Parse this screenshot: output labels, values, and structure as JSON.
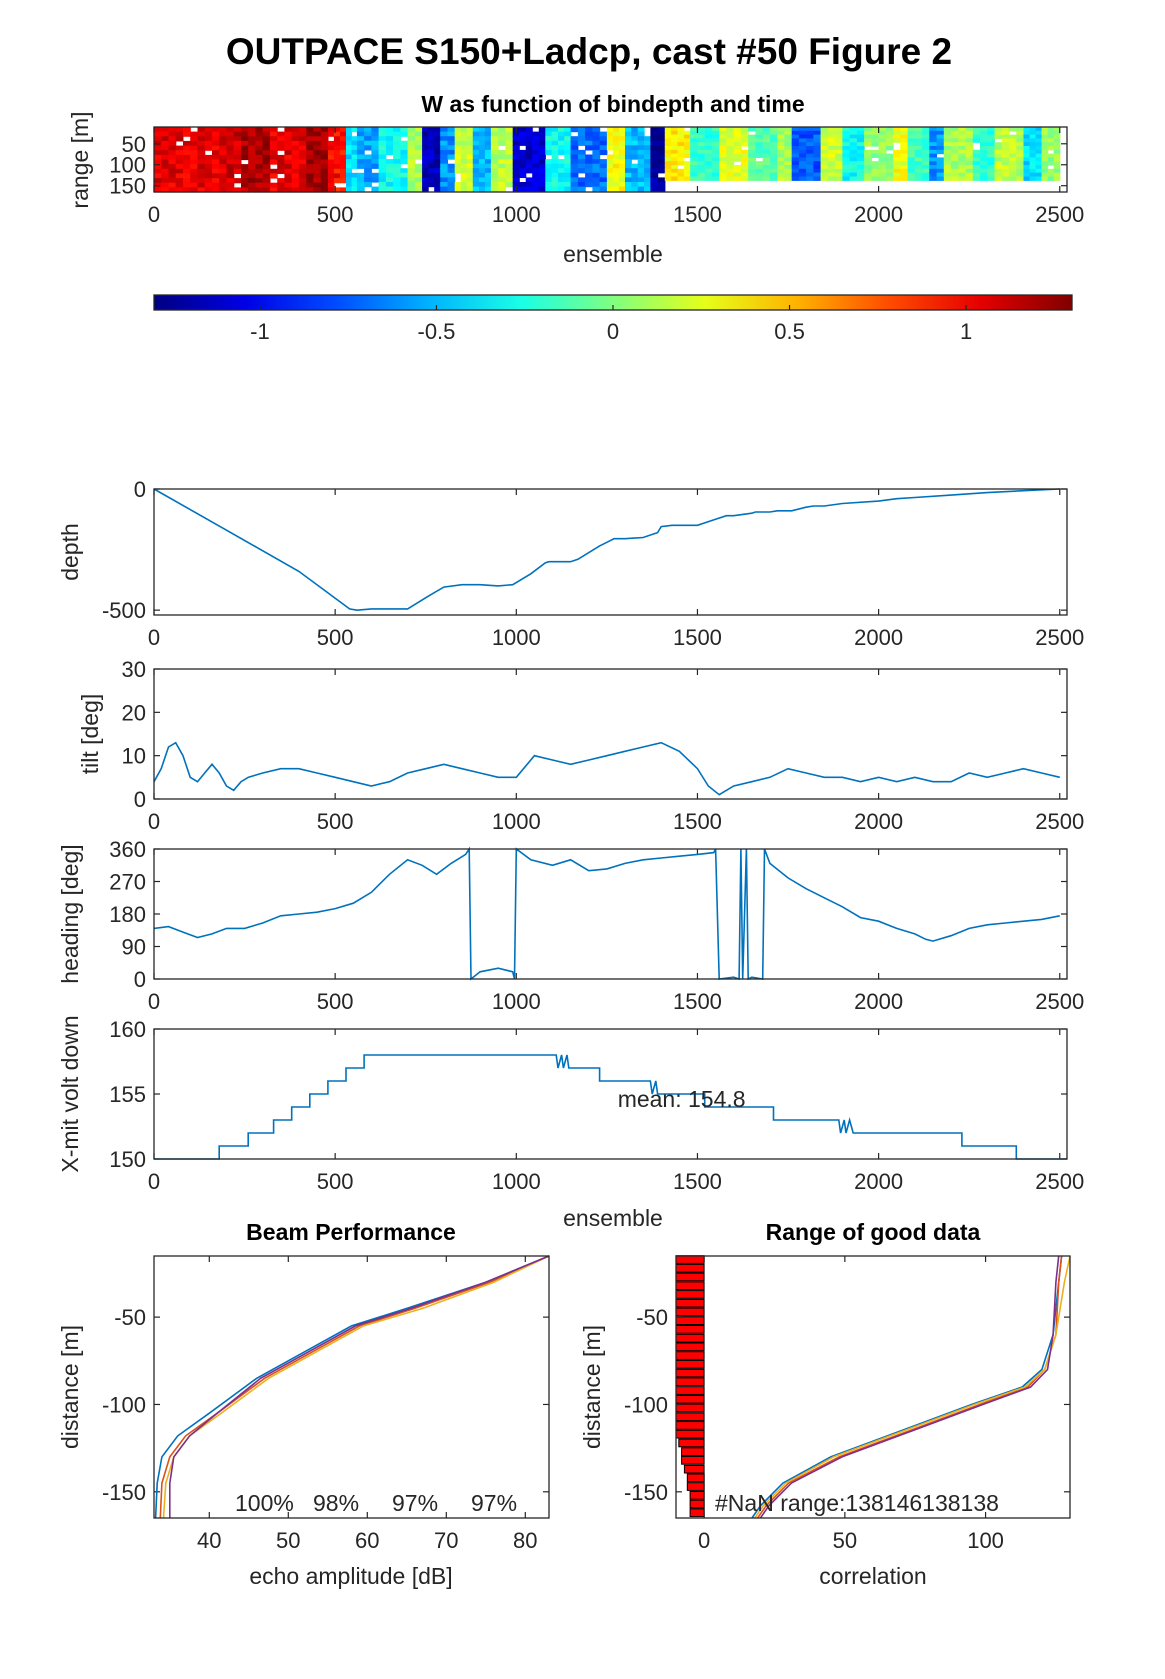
{
  "figure_title": "OUTPACE S150+Ladcp, cast #50 Figure 2",
  "colors": {
    "line": "#0072BD",
    "bar_fill": "#ff0000",
    "axes": "#262626"
  },
  "chart_data": [
    {
      "id": "w-image",
      "type": "heatmap",
      "title": "W as function of bindepth and time",
      "xlabel": "ensemble",
      "ylabel": "range [m]",
      "xlim": [
        0,
        2520
      ],
      "ylim": [
        165,
        10
      ],
      "xticks": [
        0,
        500,
        1000,
        1500,
        2000,
        2500
      ],
      "yticks": [
        50,
        100,
        150
      ],
      "colormap": "jet",
      "clim": [
        -1.3,
        1.3
      ],
      "column_segments": [
        {
          "x0": 0,
          "x1": 200,
          "w": 1.05
        },
        {
          "x0": 200,
          "x1": 240,
          "w": 1.1
        },
        {
          "x0": 240,
          "x1": 320,
          "w": 1.2
        },
        {
          "x0": 320,
          "x1": 420,
          "w": 1.05
        },
        {
          "x0": 420,
          "x1": 480,
          "w": 1.22
        },
        {
          "x0": 480,
          "x1": 530,
          "w": 0.95
        },
        {
          "x0": 530,
          "x1": 560,
          "w": -0.4
        },
        {
          "x0": 560,
          "x1": 620,
          "w": -0.55
        },
        {
          "x0": 620,
          "x1": 700,
          "w": -0.3
        },
        {
          "x0": 700,
          "x1": 740,
          "w": 0.1
        },
        {
          "x0": 740,
          "x1": 790,
          "w": -1.15
        },
        {
          "x0": 790,
          "x1": 830,
          "w": -0.6
        },
        {
          "x0": 830,
          "x1": 880,
          "w": 0.2
        },
        {
          "x0": 880,
          "x1": 930,
          "w": -0.5
        },
        {
          "x0": 930,
          "x1": 990,
          "w": 0.15
        },
        {
          "x0": 990,
          "x1": 1080,
          "w": -1.1
        },
        {
          "x0": 1080,
          "x1": 1150,
          "w": -0.3
        },
        {
          "x0": 1150,
          "x1": 1250,
          "w": -0.7
        },
        {
          "x0": 1250,
          "x1": 1300,
          "w": 0.3
        },
        {
          "x0": 1300,
          "x1": 1370,
          "w": -0.5
        },
        {
          "x0": 1370,
          "x1": 1410,
          "w": -1.25
        },
        {
          "x0": 1410,
          "x1": 1480,
          "w": 0.35
        },
        {
          "x0": 1480,
          "x1": 1560,
          "w": -0.2
        },
        {
          "x0": 1560,
          "x1": 1640,
          "w": 0.25
        },
        {
          "x0": 1640,
          "x1": 1720,
          "w": -0.1
        },
        {
          "x0": 1720,
          "x1": 1760,
          "w": 0.1
        },
        {
          "x0": 1760,
          "x1": 1840,
          "w": -0.75
        },
        {
          "x0": 1840,
          "x1": 1900,
          "w": 0.2
        },
        {
          "x0": 1900,
          "x1": 1960,
          "w": -0.3
        },
        {
          "x0": 1960,
          "x1": 2040,
          "w": 0.05
        },
        {
          "x0": 2040,
          "x1": 2080,
          "w": 0.3
        },
        {
          "x0": 2080,
          "x1": 2140,
          "w": -0.15
        },
        {
          "x0": 2140,
          "x1": 2180,
          "w": -0.6
        },
        {
          "x0": 2180,
          "x1": 2260,
          "w": 0.1
        },
        {
          "x0": 2260,
          "x1": 2320,
          "w": -0.2
        },
        {
          "x0": 2320,
          "x1": 2400,
          "w": 0.15
        },
        {
          "x0": 2400,
          "x1": 2450,
          "w": -0.4
        },
        {
          "x0": 2450,
          "x1": 2500,
          "w": 0.05
        }
      ]
    },
    {
      "id": "colorbar",
      "type": "colorbar",
      "colormap": "jet",
      "clim": [
        -1.3,
        1.3
      ],
      "ticks": [
        -1,
        -0.5,
        0,
        0.5,
        1
      ],
      "tick_labels": [
        "-1",
        "-0.5",
        "0",
        "0.5",
        "1"
      ]
    },
    {
      "id": "depth",
      "type": "line",
      "ylabel": "depth",
      "xlim": [
        0,
        2520
      ],
      "ylim": [
        -520,
        0
      ],
      "xticks": [
        0,
        500,
        1000,
        1500,
        2000,
        2500
      ],
      "yticks": [
        -500,
        0
      ],
      "x": [
        0,
        200,
        400,
        540,
        560,
        600,
        700,
        760,
        800,
        850,
        900,
        950,
        990,
        1040,
        1080,
        1090,
        1150,
        1170,
        1230,
        1250,
        1270,
        1300,
        1350,
        1390,
        1400,
        1430,
        1450,
        1500,
        1520,
        1550,
        1580,
        1600,
        1650,
        1660,
        1700,
        1720,
        1760,
        1800,
        1820,
        1850,
        1900,
        2000,
        2050,
        2100,
        2200,
        2300,
        2400,
        2500
      ],
      "y": [
        0,
        -170,
        -340,
        -495,
        -500,
        -495,
        -495,
        -440,
        -405,
        -395,
        -395,
        -400,
        -395,
        -350,
        -305,
        -300,
        -300,
        -290,
        -235,
        -220,
        -205,
        -205,
        -200,
        -180,
        -155,
        -150,
        -150,
        -150,
        -140,
        -125,
        -110,
        -110,
        -100,
        -95,
        -95,
        -90,
        -90,
        -75,
        -70,
        -70,
        -60,
        -50,
        -40,
        -35,
        -25,
        -15,
        -7,
        0
      ]
    },
    {
      "id": "tilt",
      "type": "line",
      "ylabel": "tilt [deg]",
      "xlim": [
        0,
        2520
      ],
      "ylim": [
        0,
        30
      ],
      "xticks": [
        0,
        500,
        1000,
        1500,
        2000,
        2500
      ],
      "yticks": [
        0,
        10,
        20,
        30
      ],
      "x": [
        0,
        20,
        40,
        60,
        80,
        100,
        120,
        140,
        160,
        180,
        200,
        220,
        240,
        260,
        300,
        350,
        400,
        450,
        500,
        550,
        600,
        650,
        700,
        750,
        800,
        850,
        900,
        950,
        1000,
        1050,
        1100,
        1150,
        1200,
        1250,
        1300,
        1350,
        1400,
        1450,
        1500,
        1530,
        1560,
        1600,
        1650,
        1700,
        1750,
        1800,
        1850,
        1900,
        1950,
        2000,
        2050,
        2100,
        2150,
        2200,
        2250,
        2300,
        2350,
        2400,
        2450,
        2500
      ],
      "y": [
        4,
        7,
        12,
        13,
        10,
        5,
        4,
        6,
        8,
        6,
        3,
        2,
        4,
        5,
        6,
        7,
        7,
        6,
        5,
        4,
        3,
        4,
        6,
        7,
        8,
        7,
        6,
        5,
        5,
        10,
        9,
        8,
        9,
        10,
        11,
        12,
        13,
        11,
        7,
        3,
        1,
        3,
        4,
        5,
        7,
        6,
        5,
        5,
        4,
        5,
        4,
        5,
        4,
        4,
        6,
        5,
        6,
        7,
        6,
        5
      ]
    },
    {
      "id": "heading",
      "type": "line",
      "ylabel": "heading [deg]",
      "xlim": [
        0,
        2520
      ],
      "ylim": [
        0,
        360
      ],
      "xticks": [
        0,
        500,
        1000,
        1500,
        2000,
        2500
      ],
      "yticks": [
        0,
        90,
        180,
        270,
        360
      ],
      "x": [
        0,
        40,
        80,
        120,
        160,
        200,
        250,
        300,
        350,
        400,
        450,
        500,
        550,
        600,
        650,
        700,
        740,
        780,
        820,
        860,
        870,
        875,
        900,
        950,
        990,
        995,
        1000,
        1040,
        1100,
        1150,
        1200,
        1250,
        1300,
        1350,
        1400,
        1450,
        1500,
        1545,
        1550,
        1560,
        1600,
        1615,
        1620,
        1625,
        1635,
        1640,
        1650,
        1680,
        1685,
        1700,
        1750,
        1800,
        1850,
        1900,
        1950,
        2000,
        2050,
        2100,
        2130,
        2150,
        2200,
        2250,
        2300,
        2350,
        2400,
        2450,
        2500
      ],
      "y": [
        140,
        145,
        130,
        115,
        125,
        140,
        140,
        155,
        175,
        180,
        185,
        195,
        210,
        240,
        290,
        330,
        315,
        290,
        320,
        345,
        360,
        0,
        20,
        30,
        20,
        0,
        360,
        330,
        315,
        330,
        300,
        305,
        320,
        330,
        335,
        340,
        345,
        350,
        360,
        0,
        5,
        0,
        360,
        0,
        360,
        0,
        5,
        0,
        360,
        320,
        280,
        250,
        225,
        200,
        170,
        160,
        140,
        125,
        110,
        105,
        120,
        140,
        150,
        155,
        160,
        165,
        175
      ]
    },
    {
      "id": "xmit-volt",
      "type": "line",
      "ylabel": "X-mit volt down",
      "xlabel": "ensemble",
      "xlim": [
        0,
        2520
      ],
      "ylim": [
        150,
        160
      ],
      "xticks": [
        0,
        500,
        1000,
        1500,
        2000,
        2500
      ],
      "yticks": [
        150,
        155,
        160
      ],
      "annotation": "mean: 154.8",
      "annotation_x": 1280,
      "annotation_y": 154.0,
      "x": [
        0,
        180,
        180,
        260,
        260,
        330,
        330,
        380,
        380,
        430,
        430,
        480,
        480,
        530,
        530,
        580,
        580,
        1110,
        1115,
        1125,
        1130,
        1140,
        1145,
        1160,
        1230,
        1230,
        1370,
        1375,
        1385,
        1390,
        1400,
        1520,
        1520,
        1710,
        1710,
        1890,
        1895,
        1905,
        1910,
        1920,
        1930,
        2230,
        2230,
        2380,
        2380,
        2520
      ],
      "y": [
        150,
        150,
        151,
        151,
        152,
        152,
        153,
        153,
        154,
        154,
        155,
        155,
        156,
        156,
        157,
        157,
        158,
        158,
        157,
        158,
        157,
        158,
        157,
        157,
        157,
        156,
        156,
        155,
        156,
        155,
        155,
        155,
        154,
        154,
        153,
        153,
        152,
        153,
        152,
        153,
        152,
        152,
        151,
        151,
        150,
        150
      ]
    },
    {
      "id": "beam-performance",
      "type": "line",
      "title": "Beam Performance",
      "xlabel": "echo amplitude [dB]",
      "ylabel": "distance [m]",
      "xlim": [
        33,
        83
      ],
      "ylim": [
        -165,
        -15
      ],
      "xticks": [
        40,
        50,
        60,
        70,
        80
      ],
      "yticks": [
        -150,
        -100,
        -50
      ],
      "percent_labels": [
        "100%",
        "98%",
        "97%",
        "97%"
      ],
      "series": [
        {
          "color": "#0072BD",
          "x": [
            83,
            75,
            65,
            58,
            52,
            46,
            40,
            36,
            34,
            33.4,
            33.2
          ],
          "y": [
            -15,
            -30,
            -45,
            -55,
            -70,
            -85,
            -105,
            -118,
            -130,
            -145,
            -165
          ]
        },
        {
          "color": "#D95319",
          "x": [
            83,
            75.5,
            66,
            59,
            53,
            47,
            41,
            37,
            35,
            34,
            33.8
          ],
          "y": [
            -15,
            -30,
            -45,
            -55,
            -70,
            -85,
            -105,
            -118,
            -130,
            -145,
            -165
          ]
        },
        {
          "color": "#EDB120",
          "x": [
            83,
            76,
            67,
            59.5,
            53.5,
            47.5,
            41.5,
            37.5,
            35.5,
            34.5,
            34.2
          ],
          "y": [
            -15,
            -30,
            -45,
            -55,
            -70,
            -85,
            -105,
            -118,
            -130,
            -145,
            -165
          ]
        },
        {
          "color": "#7E2F8E",
          "x": [
            83,
            75,
            65.5,
            58.5,
            52.5,
            46.5,
            41,
            37.5,
            35.5,
            35,
            35
          ],
          "y": [
            -15,
            -30,
            -45,
            -55,
            -70,
            -85,
            -105,
            -118,
            -130,
            -145,
            -165
          ]
        }
      ]
    },
    {
      "id": "range-good-data",
      "type": "bar",
      "title": "Range of good data",
      "xlabel": "correlation",
      "ylabel": "distance [m]",
      "xlim": [
        -10,
        130
      ],
      "ylim": [
        -165,
        -15
      ],
      "xticks": [
        0,
        50,
        100
      ],
      "yticks": [
        -150,
        -100,
        -50
      ],
      "annotation": "#NaN range:138146138138",
      "bars_y": [
        -17,
        -22,
        -27,
        -32,
        -37,
        -42,
        -47,
        -52,
        -57,
        -62,
        -67,
        -72,
        -77,
        -82,
        -87,
        -92,
        -97,
        -102,
        -107,
        -112,
        -117,
        -122,
        -127,
        -132,
        -137,
        -142,
        -147,
        -152,
        -157,
        -162
      ],
      "bars_left": [
        -10,
        -10,
        -10,
        -10,
        -10,
        -10,
        -10,
        -10,
        -10,
        -10,
        -10,
        -10,
        -10,
        -10,
        -10,
        -10,
        -10,
        -10,
        -10,
        -10,
        -10,
        -9,
        -8,
        -8,
        -7,
        -6,
        -6,
        -5,
        -5,
        -5
      ],
      "bars_right": [
        0,
        0,
        0,
        0,
        0,
        0,
        0,
        0,
        0,
        0,
        0,
        0,
        0,
        0,
        0,
        0,
        0,
        0,
        0,
        0,
        0,
        0,
        0,
        0,
        0,
        0,
        0,
        0,
        0,
        0
      ],
      "series": [
        {
          "color": "#0072BD",
          "x": [
            127,
            126,
            124,
            120,
            113,
            95,
            70,
            45,
            28,
            20,
            17
          ],
          "y": [
            -15,
            -30,
            -60,
            -80,
            -90,
            -100,
            -115,
            -130,
            -145,
            -158,
            -165
          ]
        },
        {
          "color": "#D95319",
          "x": [
            127,
            126,
            125,
            121,
            115,
            98,
            73,
            48,
            30,
            22,
            19
          ],
          "y": [
            -15,
            -30,
            -60,
            -80,
            -90,
            -100,
            -115,
            -130,
            -145,
            -158,
            -165
          ]
        },
        {
          "color": "#EDB120",
          "x": [
            130,
            128,
            125,
            121,
            114,
            96,
            71,
            46,
            29,
            21,
            18
          ],
          "y": [
            -15,
            -30,
            -60,
            -80,
            -90,
            -100,
            -115,
            -130,
            -145,
            -158,
            -165
          ]
        },
        {
          "color": "#7E2F8E",
          "x": [
            126,
            125,
            124,
            122,
            116,
            99,
            74,
            49,
            31,
            23,
            20
          ],
          "y": [
            -15,
            -30,
            -60,
            -80,
            -90,
            -100,
            -115,
            -130,
            -145,
            -158,
            -165
          ]
        }
      ]
    }
  ]
}
